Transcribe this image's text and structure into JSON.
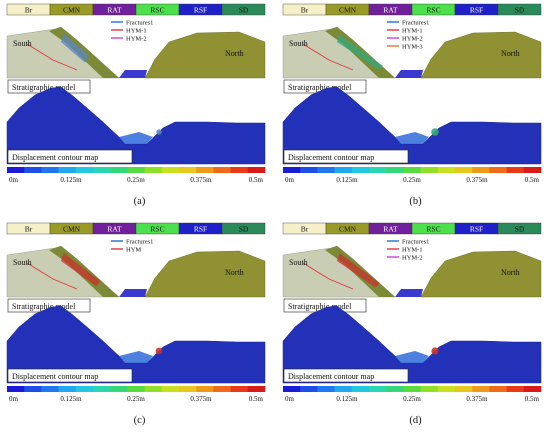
{
  "figure": {
    "panels": [
      {
        "id": "a",
        "caption": "(a)",
        "legend": [
          {
            "label": "Fractures1",
            "color": "#1e73d8"
          },
          {
            "label": "HYM-1",
            "color": "#e03535"
          },
          {
            "label": "HYM-2",
            "color": "#d23fd2"
          }
        ],
        "failure_extent": 0.18,
        "failure_color": "#5a86c0"
      },
      {
        "id": "b",
        "caption": "(b)",
        "legend": [
          {
            "label": "Fractures1",
            "color": "#1e73d8"
          },
          {
            "label": "HYM-1",
            "color": "#e03535"
          },
          {
            "label": "HYM-2",
            "color": "#d23fd2"
          },
          {
            "label": "HYM-3",
            "color": "#e07a2a"
          }
        ],
        "failure_extent": 0.45,
        "failure_color": "#34a878"
      },
      {
        "id": "c",
        "caption": "(c)",
        "legend": [
          {
            "label": "Fractures1",
            "color": "#1e73d8"
          },
          {
            "label": "HYM",
            "color": "#e03535"
          }
        ],
        "failure_extent": 0.35,
        "failure_color": "#c8322c"
      },
      {
        "id": "d",
        "caption": "(d)",
        "legend": [
          {
            "label": "Fractures1",
            "color": "#1e73d8"
          },
          {
            "label": "HYM-1",
            "color": "#e03535"
          },
          {
            "label": "HYM-2",
            "color": "#d23fd2"
          }
        ],
        "failure_extent": 0.4,
        "failure_color": "#c8322c"
      }
    ],
    "strata": [
      {
        "label": "Br",
        "color": "#f6f0c8"
      },
      {
        "label": "CMN",
        "color": "#9a9a28"
      },
      {
        "label": "RAT",
        "color": "#70209a"
      },
      {
        "label": "RSC",
        "color": "#4ce04c"
      },
      {
        "label": "RSF",
        "color": "#2020c8"
      },
      {
        "label": "SD",
        "color": "#2a8a5a"
      }
    ],
    "labels": {
      "south": "South",
      "north": "North",
      "stratigraphic": "Stratigraphic model",
      "displacement": "Displacement contour map"
    },
    "colorbar": {
      "colors": [
        "#1a1ad8",
        "#1d4ee8",
        "#1f78f0",
        "#20a8f0",
        "#22c8e0",
        "#2ad6b0",
        "#34d87a",
        "#56dc40",
        "#90e028",
        "#c8e020",
        "#e8c820",
        "#f09a1c",
        "#f06a1a",
        "#e83a18",
        "#d81a18"
      ],
      "ticks": [
        "0m",
        "0.125m",
        "0.25m",
        "0.375m",
        "0.5m"
      ]
    }
  }
}
